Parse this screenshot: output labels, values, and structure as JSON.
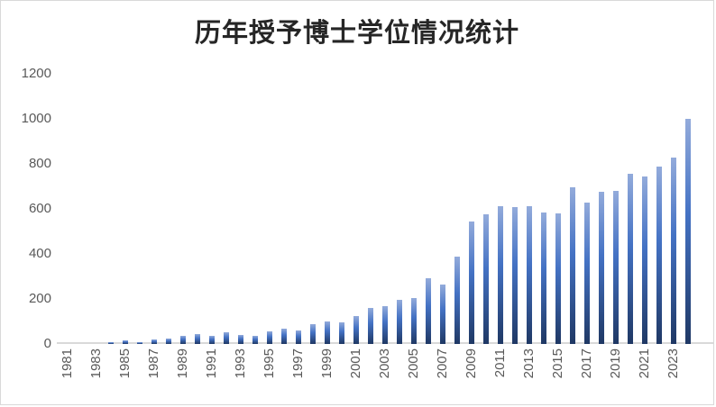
{
  "window": {
    "background": "#ffffff",
    "border_color": "#d9d9d9"
  },
  "chart_data": {
    "type": "bar",
    "title": "历年授予博士学位情况统计",
    "xlabel": "",
    "ylabel": "",
    "ylim": [
      0,
      1200
    ],
    "yticks": [
      0,
      200,
      400,
      600,
      800,
      1000,
      1200
    ],
    "grid": false,
    "legend": false,
    "categories": [
      1981,
      1982,
      1983,
      1984,
      1985,
      1986,
      1987,
      1988,
      1989,
      1990,
      1991,
      1992,
      1993,
      1994,
      1995,
      1996,
      1997,
      1998,
      1999,
      2000,
      2001,
      2002,
      2003,
      2004,
      2005,
      2006,
      2007,
      2008,
      2009,
      2010,
      2011,
      2012,
      2013,
      2014,
      2015,
      2016,
      2017,
      2018,
      2019,
      2020,
      2021,
      2022,
      2023,
      2024
    ],
    "values": [
      0,
      0,
      0,
      7,
      15,
      9,
      20,
      26,
      35,
      43,
      38,
      51,
      40,
      37,
      56,
      69,
      60,
      87,
      101,
      97,
      123,
      160,
      169,
      196,
      205,
      292,
      265,
      387,
      543,
      578,
      613,
      608,
      613,
      585,
      580,
      697,
      630,
      675,
      680,
      755,
      745,
      790,
      830,
      1000
    ],
    "x_tick_labels": [
      "1981",
      "1983",
      "1985",
      "1987",
      "1989",
      "1991",
      "1993",
      "1995",
      "1997",
      "1999",
      "2001",
      "2003",
      "2005",
      "2007",
      "2009",
      "2011",
      "2013",
      "2015",
      "2017",
      "2019",
      "2021",
      "2023"
    ],
    "colors": {
      "bar_gradient_top": "#93abdb",
      "bar_gradient_mid": "#4472c4",
      "bar_gradient_bottom": "#1f3864",
      "axis_line": "#d9d9d9",
      "tick_label": "#595959",
      "title": "#262626"
    }
  }
}
